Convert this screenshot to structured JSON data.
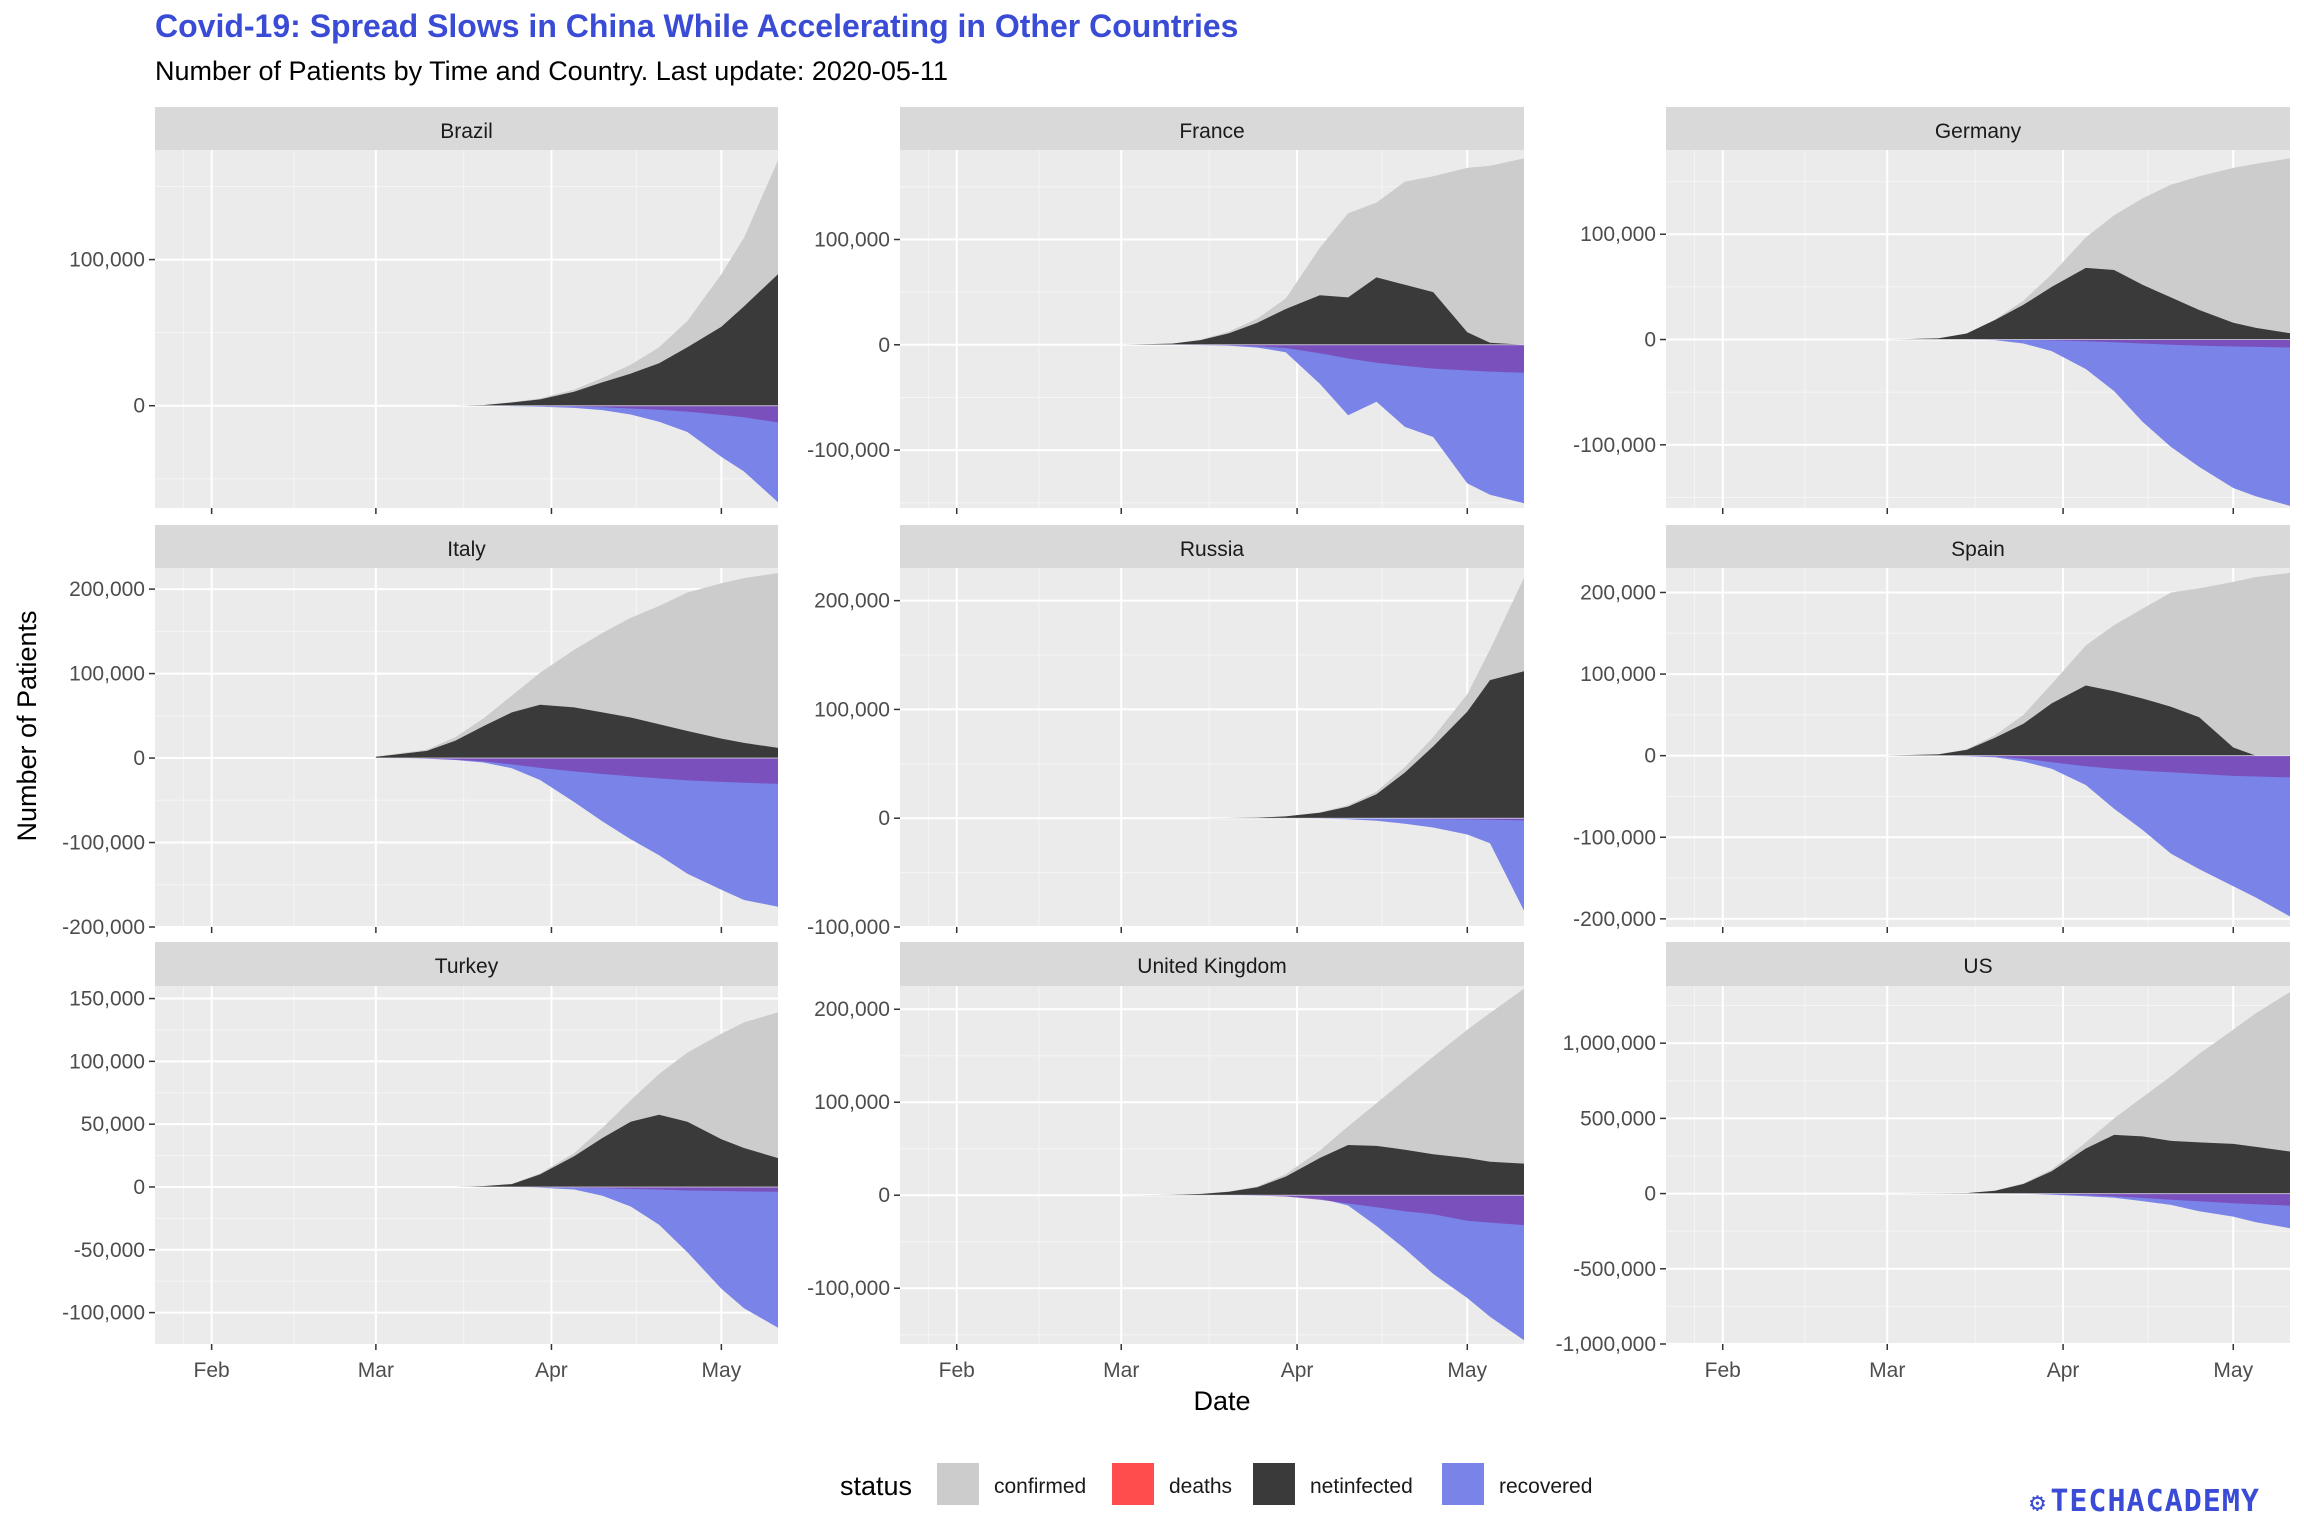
{
  "title": "Covid-19: Spread Slows in China While Accelerating in Other Countries",
  "subtitle": "Number of Patients by Time and Country. Last update: 2020-05-11",
  "logo": "TECHACADEMY",
  "chart_data": {
    "type": "area",
    "facet_layout": "3x3",
    "xlabel": "Date",
    "ylabel": "Number of Patients",
    "x_ticks": [
      "Feb",
      "Mar",
      "Apr",
      "May"
    ],
    "x_tick_dates": [
      "2020-02-01",
      "2020-03-01",
      "2020-04-01",
      "2020-05-01"
    ],
    "x_range": [
      "2020-01-22",
      "2020-05-11"
    ],
    "grid": true,
    "legend": {
      "title": "status",
      "position": "bottom",
      "entries": [
        {
          "name": "confirmed",
          "color": "#cccccc"
        },
        {
          "name": "deaths",
          "color": "#ff4d4d"
        },
        {
          "name": "netinfected",
          "color": "#3a3a3a"
        },
        {
          "name": "recovered",
          "color": "#7983e8"
        }
      ]
    },
    "colors": {
      "confirmed": "#cccccc",
      "netinfected": "#3a3a3a",
      "deaths": "#9a7fd0",
      "deaths_overlap": "#7a48b5",
      "recovered": "#7983e8",
      "panel_bg": "#ebebeb",
      "strip_bg": "#d9d9d9"
    },
    "dates": [
      "2020-03-01",
      "2020-03-10",
      "2020-03-15",
      "2020-03-20",
      "2020-03-25",
      "2020-03-30",
      "2020-04-05",
      "2020-04-10",
      "2020-04-15",
      "2020-04-20",
      "2020-04-25",
      "2020-05-01",
      "2020-05-05",
      "2020-05-11"
    ],
    "panels": [
      {
        "country": "Brazil",
        "ylim": [
          -70000,
          175000
        ],
        "y_ticks": [
          0,
          100000
        ],
        "y_tick_labels": [
          "0",
          "100,000"
        ],
        "confirmed": [
          0,
          0,
          0,
          500,
          2500,
          5000,
          11000,
          19000,
          28000,
          40000,
          58000,
          90000,
          115000,
          168000
        ],
        "netinfected": [
          0,
          0,
          0,
          450,
          2200,
          4300,
          9500,
          16000,
          22000,
          29000,
          40000,
          54000,
          68000,
          90000
        ],
        "deaths": [
          0,
          0,
          0,
          -10,
          -60,
          -160,
          -550,
          -1000,
          -1900,
          -2700,
          -4000,
          -6300,
          -7900,
          -11500
        ],
        "recovered": [
          0,
          0,
          0,
          -40,
          -300,
          -700,
          -1500,
          -3000,
          -6000,
          -11000,
          -18000,
          -35000,
          -45000,
          -66000
        ]
      },
      {
        "country": "France",
        "ylim": [
          -155000,
          185000
        ],
        "y_ticks": [
          -100000,
          0,
          100000
        ],
        "y_tick_labels": [
          "-100,000",
          "0",
          "100,000"
        ],
        "confirmed": [
          0,
          1200,
          5000,
          12500,
          25000,
          44000,
          92000,
          125000,
          135000,
          155000,
          160000,
          168000,
          170000,
          177000
        ],
        "netinfected": [
          0,
          1100,
          4500,
          11000,
          21000,
          34000,
          47000,
          45000,
          64000,
          57000,
          50000,
          12000,
          2000,
          0
        ],
        "deaths": [
          0,
          -30,
          -100,
          -450,
          -1300,
          -3000,
          -8000,
          -13000,
          -17000,
          -20000,
          -22600,
          -24400,
          -25500,
          -26600
        ],
        "recovered": [
          0,
          -100,
          -400,
          -1000,
          -2700,
          -7000,
          -37000,
          -67000,
          -54000,
          -78000,
          -87600,
          -131600,
          -142500,
          -150400
        ]
      },
      {
        "country": "Germany",
        "ylim": [
          -160000,
          180000
        ],
        "y_ticks": [
          -100000,
          0,
          100000
        ],
        "y_tick_labels": [
          "-100,000",
          "0",
          "100,000"
        ],
        "confirmed": [
          0,
          1200,
          5800,
          19000,
          37000,
          62000,
          97000,
          118000,
          134000,
          147000,
          155000,
          163000,
          167000,
          172000
        ],
        "netinfected": [
          0,
          1100,
          5700,
          18500,
          33000,
          50000,
          68000,
          66000,
          52000,
          40000,
          28000,
          16000,
          11000,
          6000
        ],
        "deaths": [
          0,
          0,
          -10,
          -70,
          -200,
          -600,
          -1600,
          -2600,
          -3800,
          -4900,
          -5800,
          -6600,
          -7000,
          -7600
        ],
        "recovered": [
          0,
          -20,
          -80,
          -500,
          -3800,
          -11000,
          -28000,
          -49000,
          -78000,
          -102000,
          -121000,
          -141000,
          -149000,
          -158000
        ]
      },
      {
        "country": "Italy",
        "ylim": [
          -200000,
          225000
        ],
        "y_ticks": [
          -200000,
          -100000,
          0,
          100000,
          200000
        ],
        "y_tick_labels": [
          "-200,000",
          "-100,000",
          "0",
          "100,000",
          "200,000"
        ],
        "confirmed": [
          1700,
          10000,
          24700,
          47000,
          74000,
          101000,
          128000,
          148000,
          166000,
          180000,
          196000,
          207000,
          213000,
          219000
        ],
        "netinfected": [
          1500,
          8500,
          20600,
          37800,
          54000,
          63000,
          60000,
          54000,
          48000,
          40000,
          32000,
          23000,
          18000,
          12000
        ],
        "deaths": [
          -30,
          -630,
          -1800,
          -4000,
          -7500,
          -11600,
          -15800,
          -18900,
          -21600,
          -24100,
          -26400,
          -28200,
          -29300,
          -30500
        ],
        "recovered": [
          -100,
          -720,
          -2300,
          -5200,
          -12000,
          -26000,
          -52000,
          -75000,
          -96000,
          -115000,
          -137000,
          -156000,
          -168000,
          -176000
        ]
      },
      {
        "country": "Russia",
        "ylim": [
          -100000,
          230000
        ],
        "y_ticks": [
          -100000,
          0,
          100000,
          200000
        ],
        "y_tick_labels": [
          "-100,000",
          "0",
          "100,000",
          "200,000"
        ],
        "confirmed": [
          0,
          10,
          60,
          250,
          650,
          1800,
          5400,
          11900,
          24500,
          47000,
          74600,
          114000,
          155000,
          221000
        ],
        "netinfected": [
          0,
          10,
          55,
          240,
          600,
          1700,
          5000,
          10700,
          22000,
          42000,
          66000,
          98000,
          127000,
          135000
        ],
        "deaths": [
          0,
          0,
          0,
          -1,
          -3,
          -13,
          -45,
          -95,
          -200,
          -400,
          -680,
          -1100,
          -1500,
          -2000
        ],
        "recovered": [
          0,
          0,
          -5,
          -10,
          -40,
          -100,
          -400,
          -1000,
          -2300,
          -5000,
          -8500,
          -15000,
          -23000,
          -85000
        ]
      },
      {
        "country": "Spain",
        "ylim": [
          -210000,
          230000
        ],
        "y_ticks": [
          -200000,
          -100000,
          0,
          100000,
          200000
        ],
        "y_tick_labels": [
          "-200,000",
          "-100,000",
          "0",
          "100,000",
          "200,000"
        ],
        "confirmed": [
          80,
          1700,
          8000,
          25000,
          50000,
          88000,
          135000,
          160000,
          180000,
          200000,
          205000,
          213000,
          219000,
          224000
        ],
        "netinfected": [
          78,
          1600,
          7000,
          22000,
          39000,
          64000,
          86000,
          79000,
          70000,
          60000,
          47000,
          10000,
          0,
          0
        ],
        "deaths": [
          0,
          -35,
          -300,
          -1000,
          -3700,
          -8000,
          -13000,
          -16000,
          -18500,
          -20400,
          -22500,
          -24800,
          -25600,
          -26700
        ],
        "recovered": [
          -2,
          -65,
          -700,
          -2000,
          -7300,
          -16000,
          -36000,
          -65000,
          -91000,
          -120000,
          -139000,
          -160000,
          -174000,
          -197000
        ]
      },
      {
        "country": "Turkey",
        "ylim": [
          -125000,
          160000
        ],
        "y_ticks": [
          -100000,
          -50000,
          0,
          50000,
          100000,
          150000
        ],
        "y_tick_labels": [
          "-100,000",
          "-50,000",
          "0",
          "50,000",
          "100,000",
          "150,000"
        ],
        "confirmed": [
          0,
          0,
          5,
          700,
          2400,
          10800,
          27000,
          47000,
          69000,
          90000,
          107000,
          122000,
          131000,
          139000
        ],
        "netinfected": [
          0,
          0,
          5,
          680,
          2300,
          10000,
          24500,
          39000,
          52000,
          57500,
          52000,
          38000,
          31000,
          23000
        ],
        "deaths": [
          0,
          0,
          0,
          -9,
          -60,
          -170,
          -570,
          -1000,
          -1500,
          -2000,
          -2800,
          -3200,
          -3500,
          -3800
        ],
        "recovered": [
          0,
          0,
          0,
          -10,
          -40,
          -600,
          -2000,
          -7000,
          -15500,
          -30000,
          -52000,
          -81000,
          -96500,
          -112000
        ]
      },
      {
        "country": "United Kingdom",
        "ylim": [
          -160000,
          225000
        ],
        "y_ticks": [
          -100000,
          0,
          100000,
          200000
        ],
        "y_tick_labels": [
          "-100,000",
          "0",
          "100,000",
          "200,000"
        ],
        "confirmed": [
          30,
          380,
          1400,
          4000,
          9500,
          22500,
          48000,
          74000,
          99000,
          124000,
          149000,
          178000,
          196000,
          222000
        ],
        "netinfected": [
          28,
          350,
          1300,
          3700,
          8500,
          20000,
          40000,
          54000,
          53000,
          49000,
          44000,
          40000,
          36000,
          34000
        ],
        "deaths": [
          0,
          -6,
          -35,
          -180,
          -460,
          -1400,
          -4800,
          -8900,
          -12900,
          -17300,
          -20400,
          -27500,
          -29400,
          -32100
        ],
        "recovered": [
          0,
          -20,
          -65,
          -120,
          -540,
          -1100,
          -3200,
          -11100,
          -33100,
          -57700,
          -84600,
          -110500,
          -130600,
          -155900
        ]
      },
      {
        "country": "US",
        "ylim": [
          -1000000,
          1380000
        ],
        "y_ticks": [
          -1000000,
          -500000,
          0,
          500000,
          1000000
        ],
        "y_tick_labels": [
          "-1,000,000",
          "-500,000",
          "0",
          "500,000",
          "1,000,000"
        ],
        "confirmed": [
          100,
          900,
          3500,
          20000,
          68000,
          160000,
          340000,
          500000,
          640000,
          780000,
          930000,
          1090000,
          1200000,
          1340000
        ],
        "netinfected": [
          95,
          880,
          3400,
          19000,
          64000,
          148000,
          300000,
          390000,
          380000,
          350000,
          340000,
          330000,
          310000,
          280000
        ],
        "deaths": [
          0,
          -20,
          -60,
          -250,
          -1000,
          -3000,
          -9500,
          -18700,
          -28500,
          -40600,
          -51000,
          -64000,
          -71000,
          -80000
        ],
        "recovered": [
          -5,
          0,
          -40,
          -150,
          -800,
          -8000,
          -18000,
          -28000,
          -50000,
          -75000,
          -118000,
          -153000,
          -190000,
          -230000
        ]
      }
    ]
  }
}
